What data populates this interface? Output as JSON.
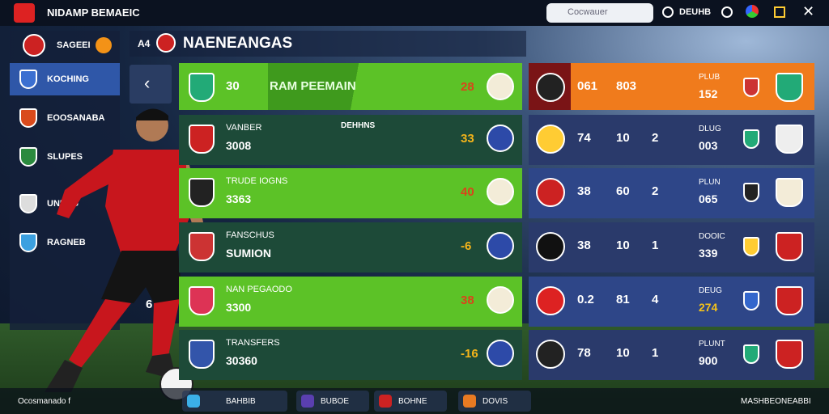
{
  "topbar": {
    "title": "NIDAMP BEMAEIC",
    "search": "Cocwauer",
    "user": "DEUHB"
  },
  "sidebar": {
    "header": "SAGEEI",
    "items": [
      "KOCHING",
      "EOOSANABA",
      "SLUPES",
      "UNESG",
      "RAGNEB"
    ]
  },
  "header": {
    "prefix": "A4",
    "title": "NAENEANGAS"
  },
  "left_rows": [
    {
      "label": "RAM PEEMAIN",
      "number": "30",
      "score": "28"
    },
    {
      "label": "VANBER",
      "number": "3008",
      "tag": "DEHHNS",
      "score": "33"
    },
    {
      "label": "TRUDE IOGNS",
      "number": "3363",
      "score": "40"
    },
    {
      "label": "FANSCHUS",
      "number": "SUMION",
      "score": "-6"
    },
    {
      "label": "NAN PEGAODO",
      "number": "3300",
      "score": "38"
    },
    {
      "label": "TRANSFERS",
      "number": "30360",
      "score": "-16"
    }
  ],
  "right_rows": [
    {
      "a": "061",
      "b": "803",
      "label": "PLUB",
      "value": "152"
    },
    {
      "a": "74",
      "b": "10",
      "c": "2",
      "label": "DLUG",
      "value": "003"
    },
    {
      "a": "38",
      "b": "60",
      "c": "2",
      "label": "PLUN",
      "value": "065"
    },
    {
      "a": "38",
      "b": "10",
      "c": "1",
      "label": "DOOIC",
      "value": "339"
    },
    {
      "a": "0.2",
      "b": "81",
      "c": "4",
      "label": "DEUG",
      "value": "274"
    },
    {
      "a": "78",
      "b": "10",
      "c": "1",
      "label": "PLUNT",
      "value": "900"
    }
  ],
  "footer": {
    "left": "Ocosmanado f",
    "number": "6",
    "tabs": [
      "BAHBIB",
      "BUBOE",
      "BOHNE",
      "DOVIS"
    ],
    "right": "MASHBEONEABBI"
  }
}
